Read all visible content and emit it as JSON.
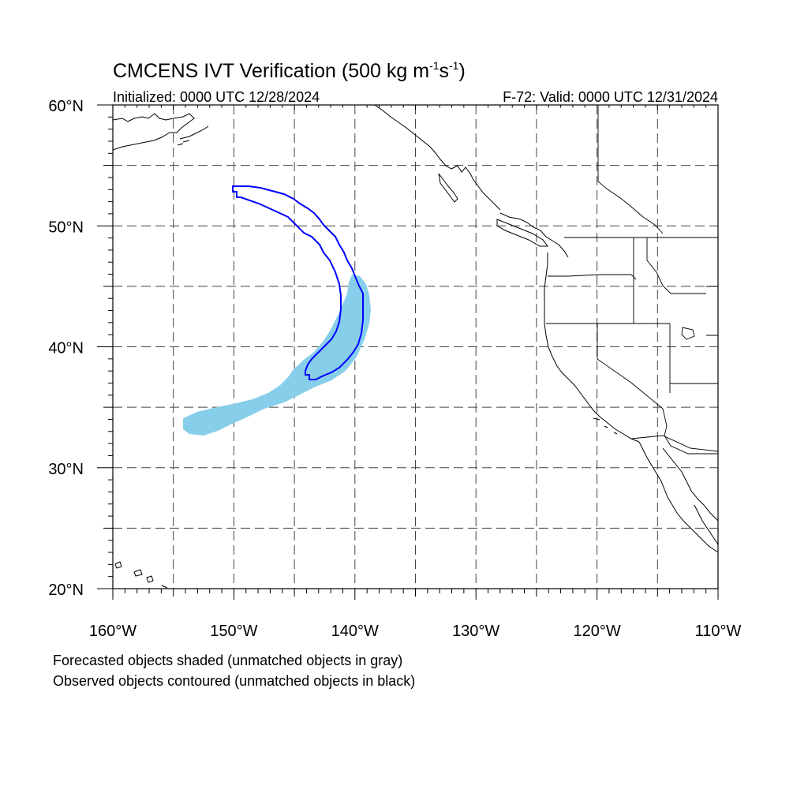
{
  "title": {
    "main": "CMCENS IVT Verification (500 kg m",
    "sup1": "-1",
    "mid": "s",
    "sup2": "-1",
    "end": ")"
  },
  "subtitle_left": "Initialized: 0000 UTC 12/28/2024",
  "subtitle_right": "F-72: Valid: 0000 UTC 12/31/2024",
  "map": {
    "lon_range": [
      -160,
      -110
    ],
    "lat_range": [
      20,
      60
    ],
    "lon_ticks": [
      {
        "value": -160,
        "label": "160°W"
      },
      {
        "value": -150,
        "label": "150°W"
      },
      {
        "value": -140,
        "label": "140°W"
      },
      {
        "value": -130,
        "label": "130°W"
      },
      {
        "value": -120,
        "label": "120°W"
      },
      {
        "value": -110,
        "label": "110°W"
      }
    ],
    "lat_ticks": [
      {
        "value": 60,
        "label": "60°N"
      },
      {
        "value": 50,
        "label": "50°N"
      },
      {
        "value": 40,
        "label": "40°N"
      },
      {
        "value": 30,
        "label": "30°N"
      },
      {
        "value": 20,
        "label": "20°N"
      }
    ],
    "grid_lons": [
      -155,
      -150,
      -145,
      -140,
      -135,
      -130,
      -125,
      -120,
      -115
    ],
    "grid_lats": [
      25,
      30,
      35,
      40,
      45,
      50,
      55
    ],
    "forecast_color": "#87ceeb",
    "observed_color": "#0000ff",
    "coast_color": "#000000"
  },
  "legend": {
    "line1": "Forecasted objects shaded (unmatched objects in gray)",
    "line2": "Observed objects contoured (unmatched objects in black)"
  }
}
